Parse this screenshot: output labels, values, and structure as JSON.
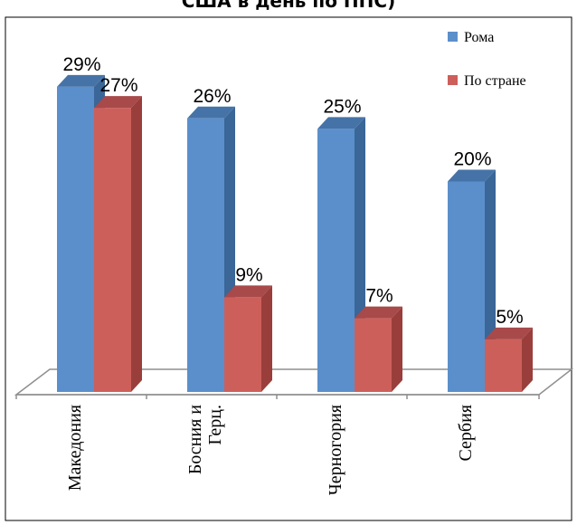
{
  "chart_data": {
    "type": "bar",
    "title": "США в день по ППС)",
    "categories": [
      "Македония",
      "Босния и Герц.",
      "Черногория",
      "Сербия"
    ],
    "category_lines": [
      [
        "Македония"
      ],
      [
        "Босния и",
        "Герц."
      ],
      [
        "Черногория"
      ],
      [
        "Сербия"
      ]
    ],
    "series": [
      {
        "name": "Рома",
        "values": [
          29,
          26,
          25,
          20
        ],
        "labels": [
          "29%",
          "26%",
          "25%",
          "20%"
        ]
      },
      {
        "name": "По стране",
        "values": [
          27,
          9,
          7,
          5
        ],
        "labels": [
          "27%",
          "9%",
          "7%",
          "5%"
        ]
      }
    ],
    "ylim": [
      0,
      32
    ],
    "unit": "%",
    "legend_position": "top-right",
    "grid": false,
    "three_d": true,
    "colors": {
      "series": [
        "#5b8fcb",
        "#cd5f5b"
      ],
      "series_side": [
        "#3a6698",
        "#993e3b"
      ],
      "series_top": [
        "#4673a7",
        "#a8494a"
      ],
      "floor": "#8f8f8f"
    }
  }
}
